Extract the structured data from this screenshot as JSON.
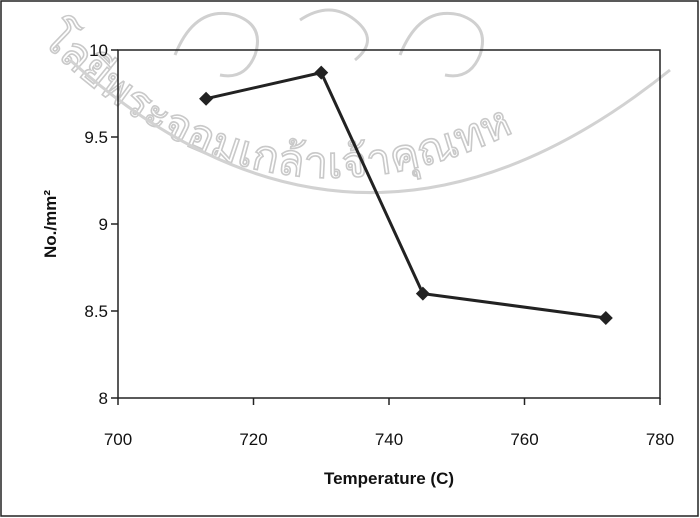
{
  "chart_data": {
    "type": "line",
    "x": [
      713,
      730,
      745,
      772
    ],
    "series": [
      {
        "values": [
          9.72,
          9.87,
          8.6,
          8.46
        ]
      }
    ],
    "xlabel": "Temperature (C)",
    "ylabel": "No./mm²",
    "xlim": [
      700,
      780
    ],
    "ylim": [
      8,
      10
    ],
    "xticks": [
      700,
      720,
      740,
      760,
      780
    ],
    "yticks": [
      8,
      8.5,
      9,
      9.5,
      10
    ],
    "xtick_labels": [
      "700",
      "720",
      "740",
      "760",
      "780"
    ],
    "ytick_labels": [
      "8",
      "8.5",
      "9",
      "9.5",
      "10"
    ],
    "marker": "diamond",
    "grid": false,
    "line_color": "#222222"
  },
  "watermark": {
    "text": "โลยีพระจอมเกล้าเจ้าคุณทห"
  }
}
